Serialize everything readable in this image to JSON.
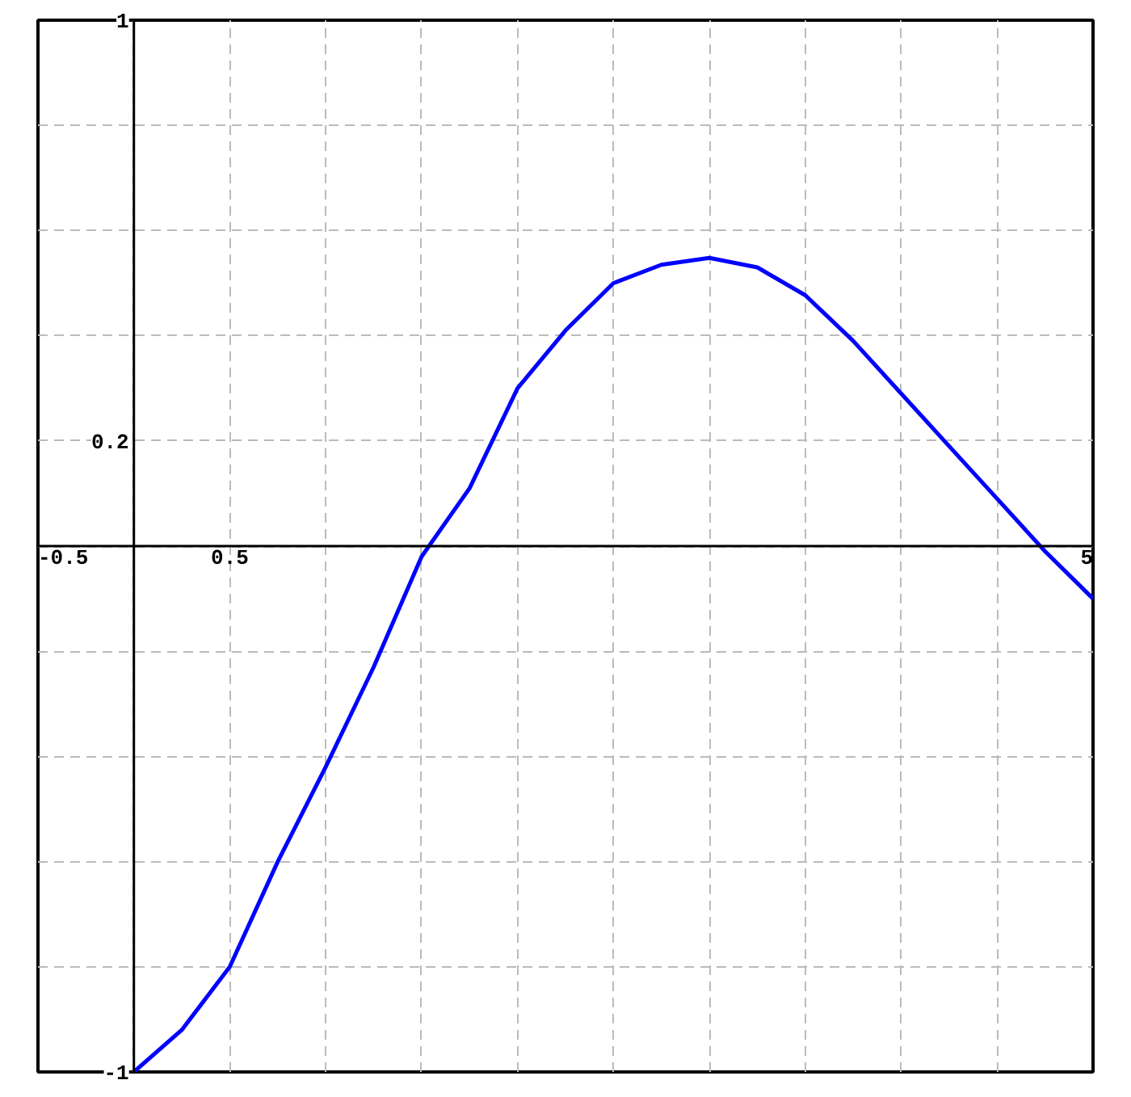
{
  "chart_data": {
    "type": "line",
    "x": [
      0,
      0.25,
      0.5,
      0.75,
      1,
      1.25,
      1.5,
      1.75,
      2,
      2.25,
      2.5,
      2.75,
      3,
      3.25,
      3.5,
      3.75,
      4,
      4.25,
      4.5,
      4.75,
      5
    ],
    "series": [
      {
        "color": "#0000ff",
        "values": [
          -1,
          -0.92,
          -0.8,
          -0.6,
          -0.42,
          -0.23,
          -0.02,
          0.11,
          0.3,
          0.41,
          0.5,
          0.535,
          0.548,
          0.53,
          0.477,
          0.39,
          0.29,
          0.19,
          0.09,
          -0.01,
          -0.1
        ]
      }
    ],
    "xlim": [
      -0.5,
      5
    ],
    "ylim": [
      -1,
      1
    ],
    "xticks": [
      -0.5,
      {
        "value": 0,
        "label": null
      },
      0.5,
      {
        "value": 1,
        "label": null
      },
      {
        "value": 1.5,
        "label": null
      },
      {
        "value": 2,
        "label": null
      },
      {
        "value": 2.5,
        "label": null
      },
      {
        "value": 3,
        "label": null
      },
      {
        "value": 3.5,
        "label": null
      },
      {
        "value": 4,
        "label": null
      },
      {
        "value": 4.5,
        "label": null
      },
      5
    ],
    "yticks": [
      -1,
      {
        "value": -0.8,
        "label": null
      },
      {
        "value": -0.6,
        "label": null
      },
      {
        "value": -0.4,
        "label": null
      },
      {
        "value": -0.2,
        "label": null
      },
      {
        "value": 0,
        "label": null
      },
      0.2,
      {
        "value": 0.4,
        "label": null
      },
      {
        "value": 0.6,
        "label": null
      },
      {
        "value": 0.8,
        "label": null
      },
      1
    ],
    "grid": true,
    "line_style": "solid",
    "marker": "none"
  }
}
